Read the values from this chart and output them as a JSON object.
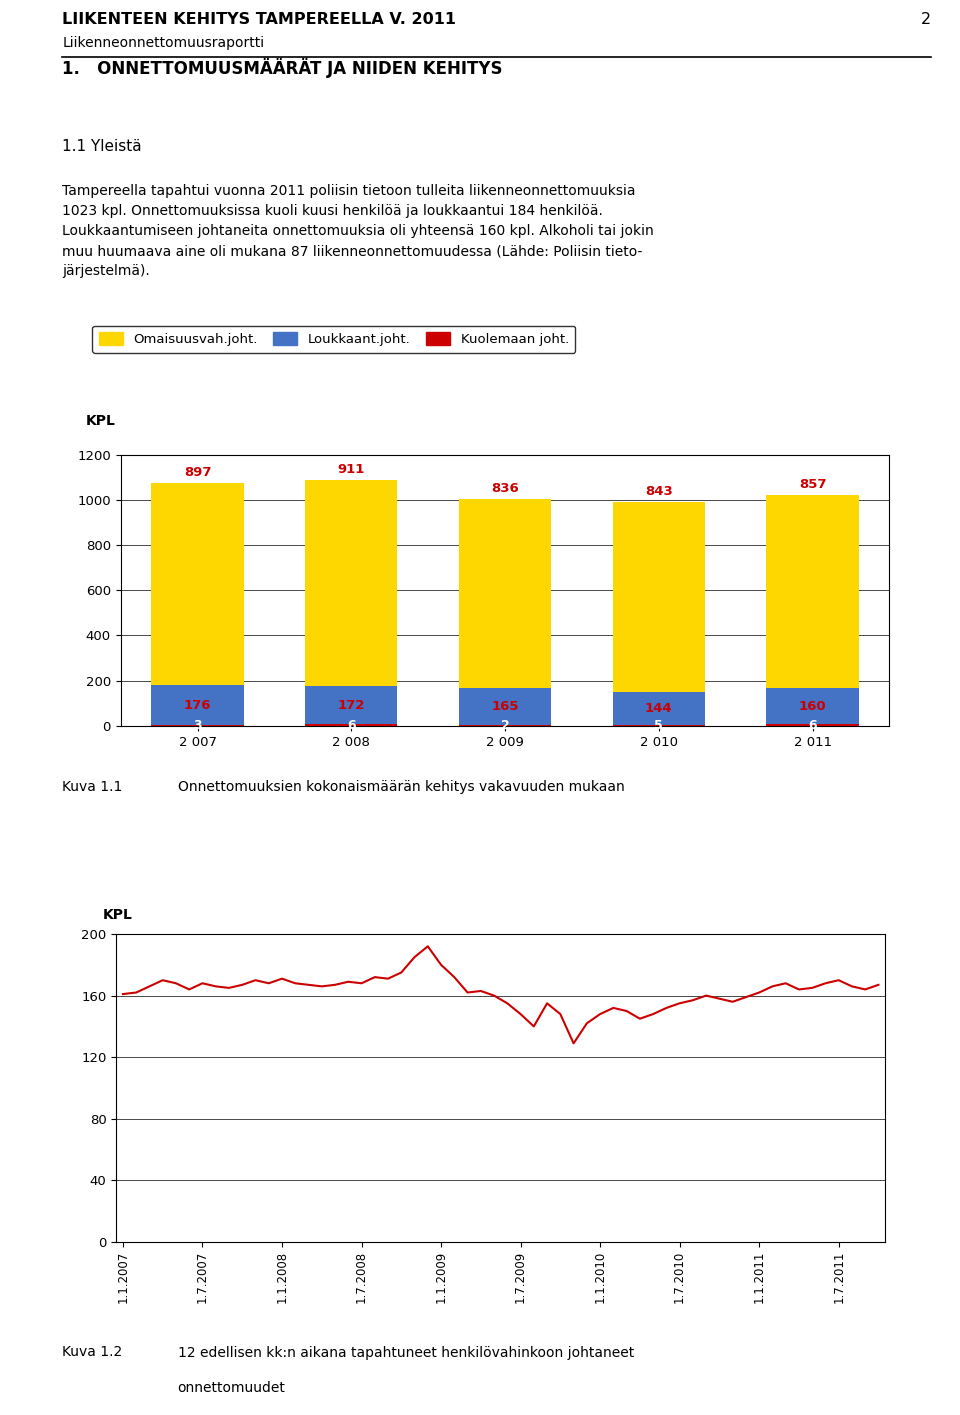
{
  "header_title": "LIIKENTEEN KEHITYS TAMPEREELLA V. 2011",
  "header_subtitle": "Liikenneonnettomuusraportti",
  "page_number": "2",
  "section_title": "1.   ONNETTOMUUSMÄÄRÄT JA NIIDEN KEHITYS",
  "subsection_title": "1.1 Yleistä",
  "body_lines": [
    "Tampereella tapahtui vuonna 2011 poliisin tietoon tulleita liikenneonnettomuuksia",
    "1023 kpl. Onnettomuuksissa kuoli kuusi henkilöä ja loukkaantui 184 henkilöä.",
    "Loukkaantumiseen johtaneita onnettomuuksia oli yhteensä 160 kpl. Alkoholi tai jokin",
    "muu huumaava aine oli mukana 87 liikenneonnettomuudessa (Lähde: Poliisin tieto-",
    "järjestelmä)."
  ],
  "years": [
    "2 007",
    "2 008",
    "2 009",
    "2 010",
    "2 011"
  ],
  "yellow_values": [
    897,
    911,
    836,
    843,
    857
  ],
  "blue_values": [
    176,
    172,
    165,
    144,
    160
  ],
  "red_values": [
    3,
    6,
    2,
    5,
    6
  ],
  "yellow_color": "#FFD700",
  "blue_color": "#4472C4",
  "red_color": "#CC0000",
  "bar_label_color": "#CC0000",
  "legend_labels": [
    "Omaisuusvah.joht.",
    "Loukkaant.joht.",
    "Kuolemaan joht."
  ],
  "chart1_ylabel": "KPL",
  "chart1_ylim": [
    0,
    1200
  ],
  "chart1_yticks": [
    0,
    200,
    400,
    600,
    800,
    1000,
    1200
  ],
  "caption1": "Kuva 1.1",
  "caption1_text": "Onnettomuuksien kokonaismäärän kehitys vakavuuden mukaan",
  "chart2_ylabel": "KPL",
  "chart2_ylim": [
    0,
    200
  ],
  "chart2_yticks": [
    0,
    40,
    80,
    120,
    160,
    200
  ],
  "chart2_xticks": [
    "1.1.2007",
    "1.7.2007",
    "1.1.2008",
    "1.7.2008",
    "1.1.2009",
    "1.7.2009",
    "1.1.2010",
    "1.7.2010",
    "1.1.2011",
    "1.7.2011"
  ],
  "line_color": "#CC0000",
  "line_values": [
    161,
    162,
    166,
    170,
    168,
    164,
    168,
    166,
    165,
    167,
    170,
    168,
    171,
    168,
    167,
    166,
    167,
    169,
    168,
    172,
    171,
    175,
    185,
    192,
    180,
    172,
    162,
    163,
    160,
    155,
    148,
    140,
    155,
    148,
    129,
    142,
    148,
    152,
    150,
    145,
    148,
    152,
    155,
    157,
    160,
    158,
    156,
    159,
    162,
    166,
    168,
    164,
    165,
    168,
    170,
    166,
    164,
    167
  ],
  "caption2": "Kuva 1.2",
  "caption2_text_line1": "12 edellisen kk:n aikana tapahtuneet henkilövahinkoon johtaneet",
  "caption2_text_line2": "onnettomuudet",
  "bg_color": "#ffffff",
  "chart_bg_color": "#ffffff"
}
